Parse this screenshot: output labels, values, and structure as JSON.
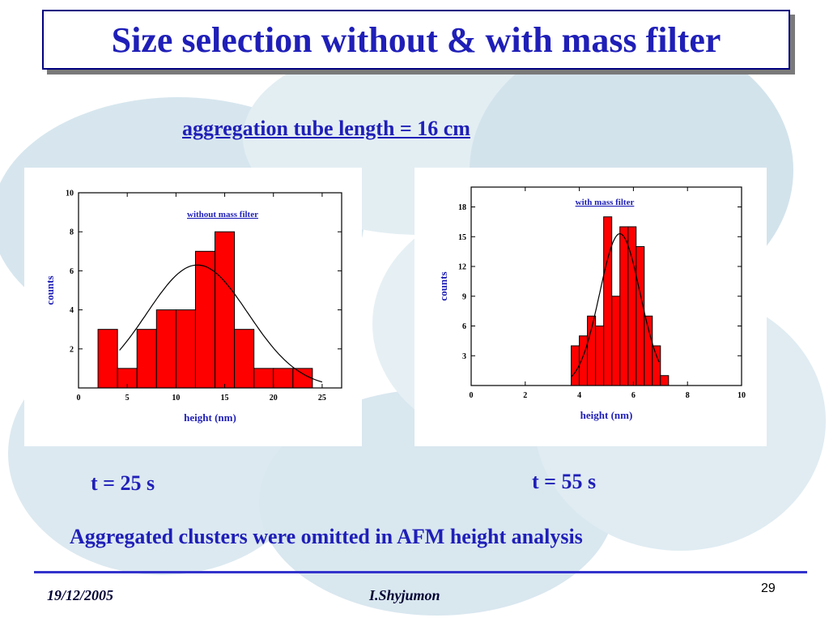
{
  "slide": {
    "title": "Size selection without & with mass filter",
    "subtitle": "aggregation tube length = 16 cm",
    "t_left": "t = 25 s",
    "t_right": "t = 55 s",
    "note": "Aggregated clusters were omitted in AFM height analysis",
    "footer_date": "19/12/2005",
    "footer_author": "I.Shyjumon",
    "page_number": "29"
  },
  "colors": {
    "text_blue": "#1f1fb8",
    "bar_fill": "#ff0000",
    "bar_stroke": "#000000",
    "background_blob": "#d7e6ee"
  },
  "chart_data": [
    {
      "type": "bar",
      "title": "without mass filter",
      "xlabel": "height (nm)",
      "ylabel": "counts",
      "xlim": [
        0,
        27
      ],
      "ylim": [
        0,
        10
      ],
      "xticks": [
        0,
        5,
        10,
        15,
        20,
        25
      ],
      "yticks": [
        2,
        4,
        6,
        8,
        10
      ],
      "bin_width": 2,
      "bins": [
        {
          "x0": 2,
          "value": 3
        },
        {
          "x0": 4,
          "value": 1
        },
        {
          "x0": 6,
          "value": 3
        },
        {
          "x0": 8,
          "value": 4
        },
        {
          "x0": 10,
          "value": 4
        },
        {
          "x0": 12,
          "value": 7
        },
        {
          "x0": 14,
          "value": 8
        },
        {
          "x0": 16,
          "value": 3
        },
        {
          "x0": 18,
          "value": 1
        },
        {
          "x0": 20,
          "value": 1
        },
        {
          "x0": 22,
          "value": 1
        }
      ],
      "fit_curve": {
        "type": "gaussian",
        "center": 12.2,
        "sigma": 5.2,
        "amplitude": 6.3,
        "x_range": [
          4.2,
          25
        ]
      },
      "grid": false
    },
    {
      "type": "bar",
      "title": "with mass filter",
      "xlabel": "height (nm)",
      "ylabel": "counts",
      "xlim": [
        0,
        10
      ],
      "ylim": [
        0,
        20
      ],
      "xticks": [
        0,
        2,
        4,
        6,
        8,
        10
      ],
      "yticks": [
        3,
        6,
        9,
        12,
        15,
        18
      ],
      "bin_width": 0.3,
      "bins": [
        {
          "x0": 3.7,
          "value": 4
        },
        {
          "x0": 4.0,
          "value": 5
        },
        {
          "x0": 4.3,
          "value": 7
        },
        {
          "x0": 4.6,
          "value": 6
        },
        {
          "x0": 4.9,
          "value": 17
        },
        {
          "x0": 5.2,
          "value": 9
        },
        {
          "x0": 5.5,
          "value": 16
        },
        {
          "x0": 5.8,
          "value": 16
        },
        {
          "x0": 6.1,
          "value": 14
        },
        {
          "x0": 6.4,
          "value": 7
        },
        {
          "x0": 6.7,
          "value": 4
        },
        {
          "x0": 7.0,
          "value": 1
        }
      ],
      "fit_curve": {
        "type": "gaussian",
        "center": 5.5,
        "sigma": 0.75,
        "amplitude": 15.3,
        "x_range": [
          3.7,
          6.95
        ]
      },
      "grid": false
    }
  ]
}
